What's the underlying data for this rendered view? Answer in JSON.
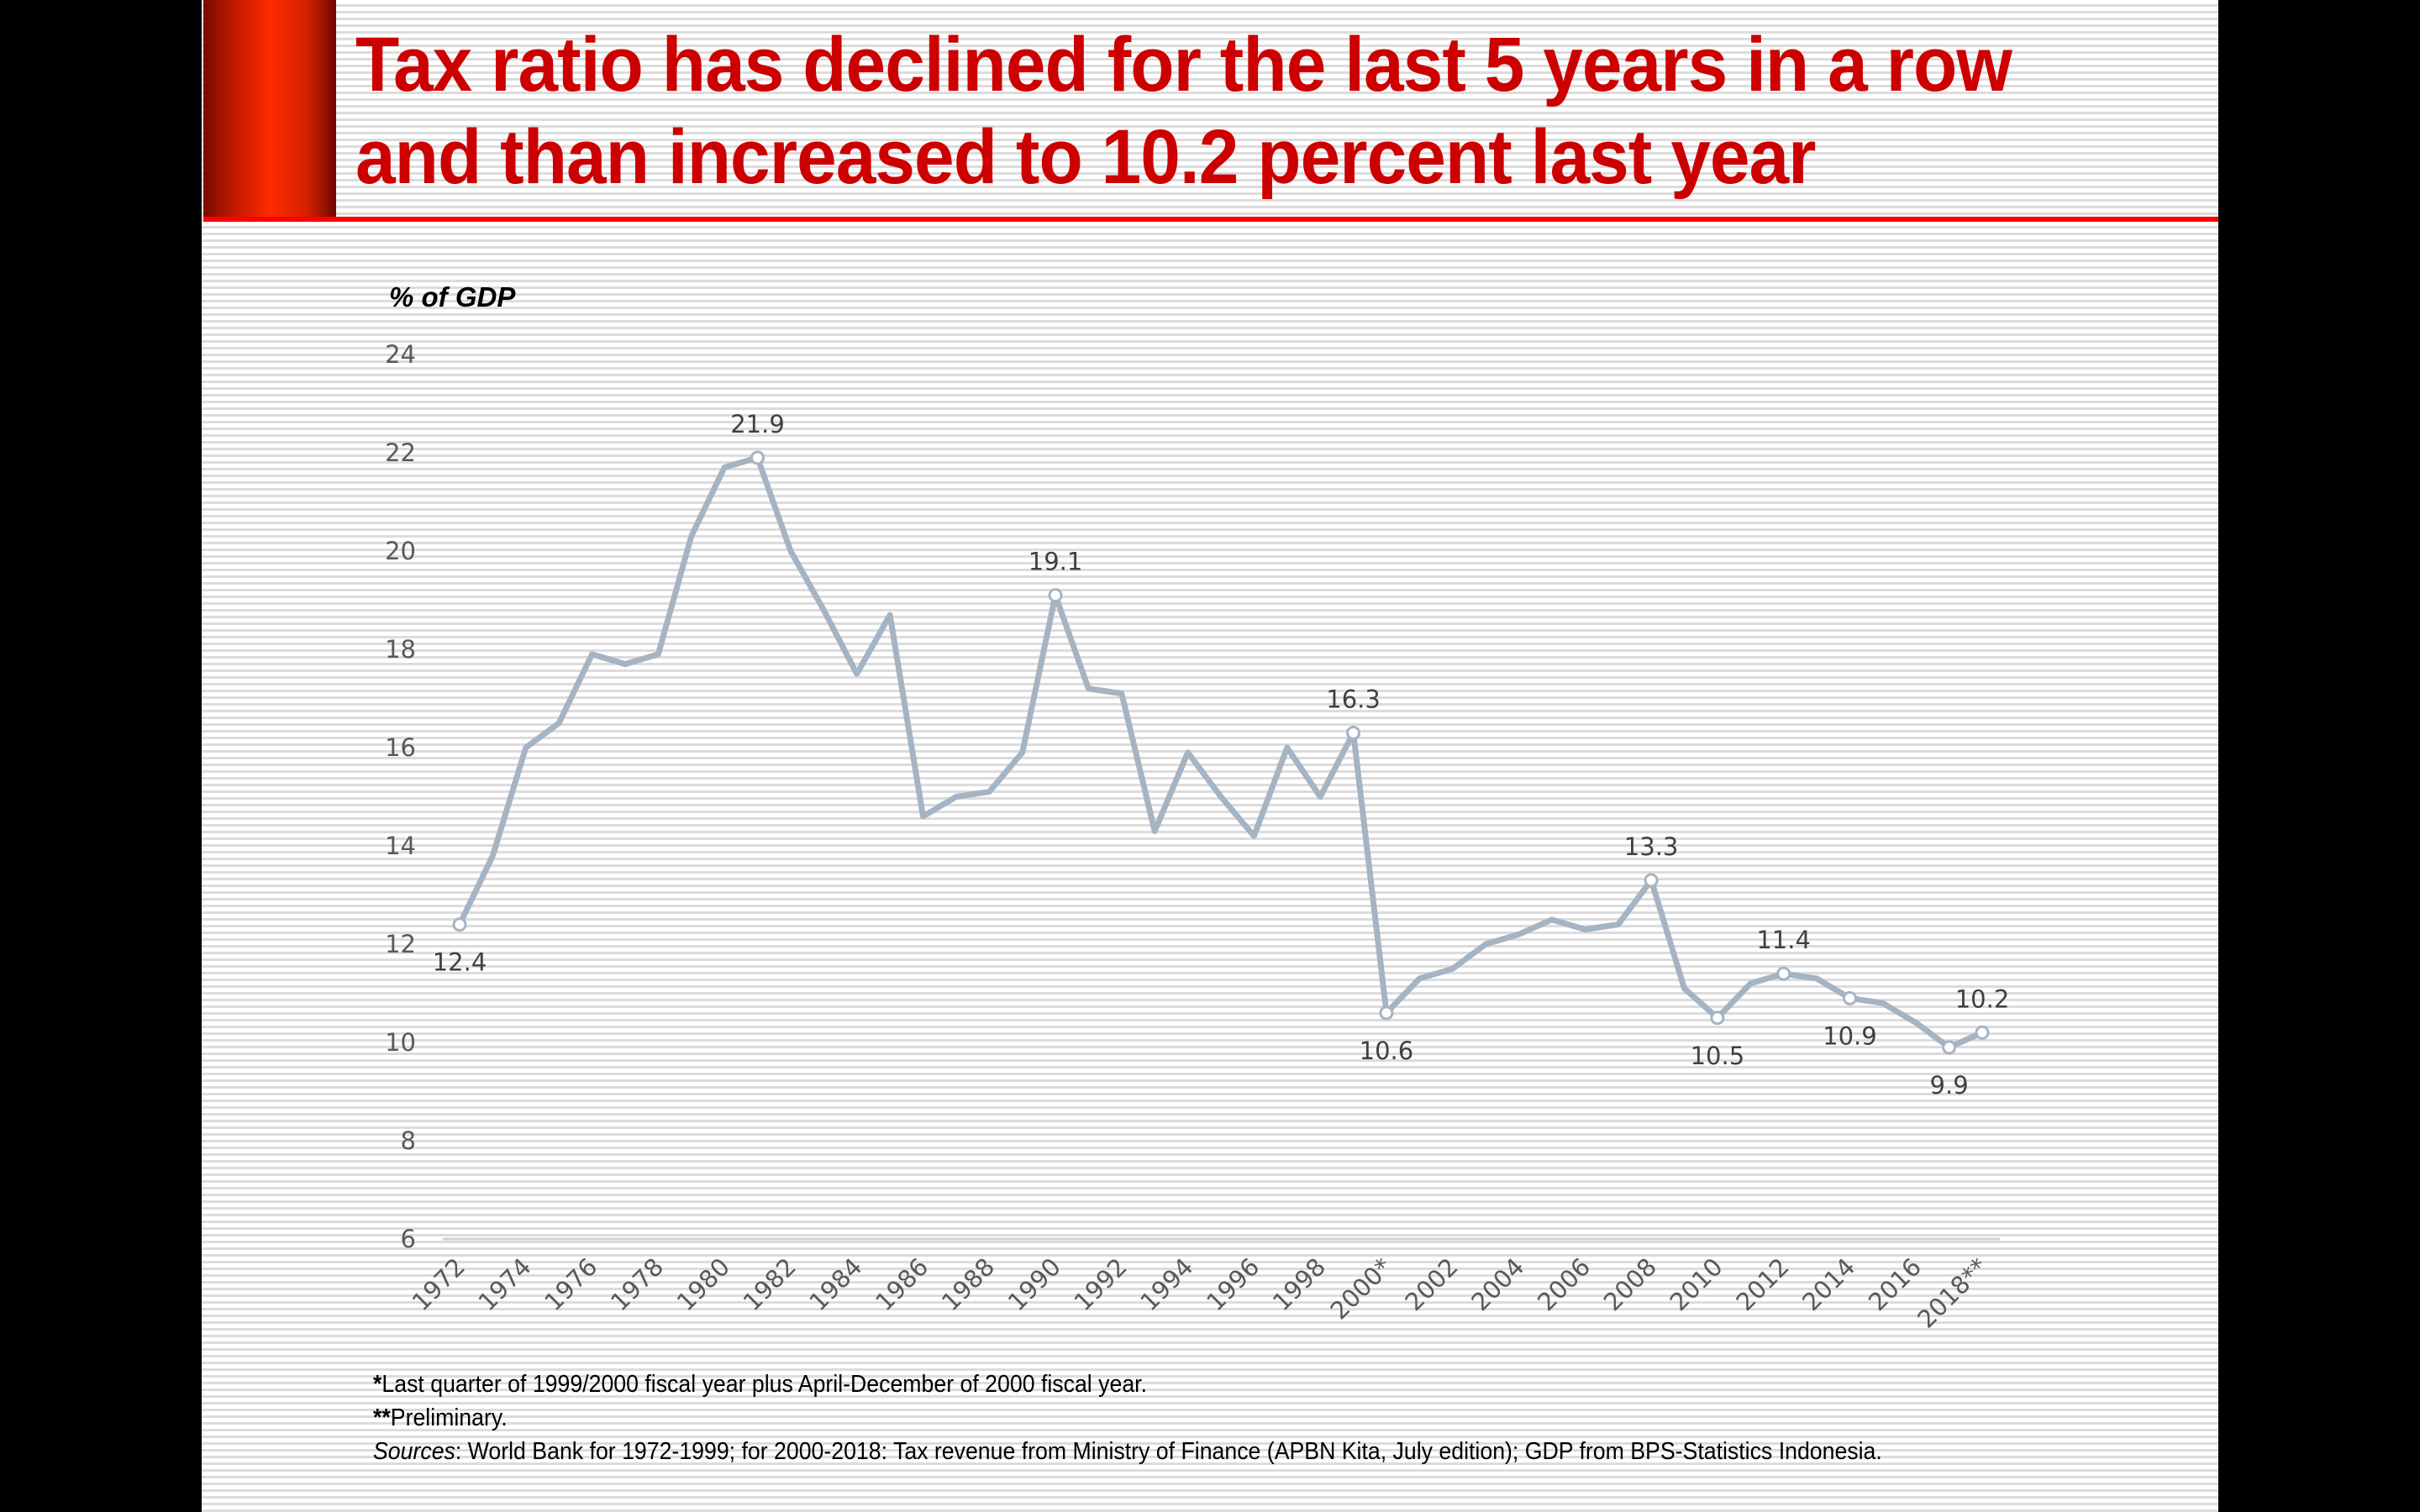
{
  "slide": {
    "title_line1": "Tax ratio has declined for the last 5 years in a row",
    "title_line2": "and than increased to 10.2 percent last year",
    "colors": {
      "title": "#cc0000",
      "accent_rule": "#ff0000",
      "line": "#a5b4c3",
      "marker_fill": "#ffffff"
    }
  },
  "chart_data": {
    "type": "line",
    "title": "",
    "ylabel": "% of GDP",
    "xlabel": "",
    "ylim": [
      6,
      24
    ],
    "yticks": [
      6,
      8,
      10,
      12,
      14,
      16,
      18,
      20,
      22,
      24
    ],
    "grid": false,
    "legend": "none",
    "x": [
      "1972",
      "1973",
      "1974",
      "1975",
      "1976",
      "1977",
      "1978",
      "1979",
      "1980",
      "1981",
      "1982",
      "1983",
      "1984",
      "1985",
      "1986",
      "1987",
      "1988",
      "1989",
      "1990",
      "1991",
      "1992",
      "1993",
      "1994",
      "1995",
      "1996",
      "1997",
      "1998",
      "1999",
      "2000*",
      "2001",
      "2002",
      "2003",
      "2004",
      "2005",
      "2006",
      "2007",
      "2008",
      "2009",
      "2010",
      "2011",
      "2012",
      "2013",
      "2014",
      "2015",
      "2016",
      "2017",
      "2018**"
    ],
    "xtick_labels": [
      "1972",
      "1974",
      "1976",
      "1978",
      "1980",
      "1982",
      "1984",
      "1986",
      "1988",
      "1990",
      "1992",
      "1994",
      "1996",
      "1998",
      "2000*",
      "2002",
      "2004",
      "2006",
      "2008",
      "2010",
      "2012",
      "2014",
      "2016",
      "2018**"
    ],
    "series": [
      {
        "name": "Tax ratio",
        "values": [
          12.4,
          13.8,
          16.0,
          16.5,
          17.9,
          17.7,
          17.9,
          20.3,
          21.7,
          21.9,
          20.0,
          18.8,
          17.5,
          18.7,
          14.6,
          15.0,
          15.1,
          15.9,
          19.1,
          17.2,
          17.1,
          14.3,
          15.9,
          15.0,
          14.2,
          16.0,
          15.0,
          16.3,
          10.6,
          11.3,
          11.5,
          12.0,
          12.2,
          12.5,
          12.3,
          12.4,
          13.3,
          11.1,
          10.5,
          11.2,
          11.4,
          11.3,
          10.9,
          10.8,
          10.4,
          9.9,
          10.2
        ]
      }
    ],
    "annotations": [
      {
        "x": "1972",
        "value": 12.4,
        "label": "12.4",
        "position": "below"
      },
      {
        "x": "1981",
        "value": 21.9,
        "label": "21.9",
        "position": "above"
      },
      {
        "x": "1990",
        "value": 19.1,
        "label": "19.1",
        "position": "above"
      },
      {
        "x": "1999",
        "value": 16.3,
        "label": "16.3",
        "position": "above"
      },
      {
        "x": "2000*",
        "value": 10.6,
        "label": "10.6",
        "position": "below"
      },
      {
        "x": "2008",
        "value": 13.3,
        "label": "13.3",
        "position": "above"
      },
      {
        "x": "2010",
        "value": 10.5,
        "label": "10.5",
        "position": "below"
      },
      {
        "x": "2012",
        "value": 11.4,
        "label": "11.4",
        "position": "above"
      },
      {
        "x": "2014",
        "value": 10.9,
        "label": "10.9",
        "position": "below"
      },
      {
        "x": "2017",
        "value": 9.9,
        "label": "9.9",
        "position": "below"
      },
      {
        "x": "2018**",
        "value": 10.2,
        "label": "10.2",
        "position": "above"
      }
    ]
  },
  "footnotes": {
    "note1_mark": "*",
    "note1_text": "Last quarter of 1999/2000 fiscal year plus April-December of 2000 fiscal year.",
    "note2_mark": "**",
    "note2_text": "Preliminary.",
    "sources_label": "Sources",
    "sources_text": ": World Bank for 1972-1999; for 2000-2018: Tax revenue from Ministry of Finance (APBN Kita, July edition); GDP from BPS-Statistics Indonesia."
  }
}
